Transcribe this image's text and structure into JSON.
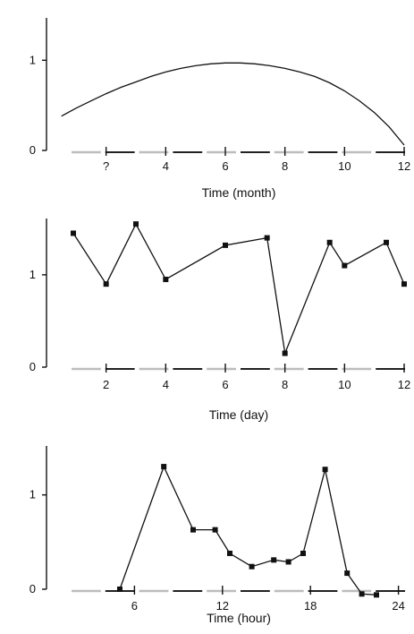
{
  "chart_data": [
    {
      "type": "line",
      "xlabel": "Time (month)",
      "xlim": [
        0,
        12.3
      ],
      "ylim": [
        0,
        1.45
      ],
      "xticks": [
        2,
        4,
        6,
        8,
        10,
        12
      ],
      "xtick_labels": [
        "?",
        "4",
        "6",
        "8",
        "10",
        "12"
      ],
      "yticks": [
        0,
        1
      ],
      "ytick_labels": [
        "0",
        "1"
      ],
      "markers": false,
      "series": [
        {
          "x": [
            0.5,
            1,
            1.5,
            2,
            2.5,
            3,
            3.5,
            4,
            4.5,
            5,
            5.5,
            6,
            6.5,
            7,
            7.5,
            8,
            8.5,
            9,
            9.5,
            10,
            10.5,
            11,
            11.5,
            12
          ],
          "y": [
            0.38,
            0.47,
            0.55,
            0.63,
            0.7,
            0.76,
            0.82,
            0.87,
            0.91,
            0.94,
            0.96,
            0.97,
            0.97,
            0.96,
            0.94,
            0.91,
            0.87,
            0.82,
            0.75,
            0.66,
            0.55,
            0.42,
            0.26,
            0.06
          ]
        }
      ]
    },
    {
      "type": "line",
      "xlabel": "Time (day)",
      "xlim": [
        0,
        12.3
      ],
      "ylim": [
        0,
        1.6
      ],
      "xticks": [
        2,
        4,
        6,
        8,
        10,
        12
      ],
      "xtick_labels": [
        "2",
        "4",
        "6",
        "8",
        "10",
        "12"
      ],
      "yticks": [
        0,
        1
      ],
      "ytick_labels": [
        "0",
        "1"
      ],
      "markers": true,
      "series": [
        {
          "x": [
            0.9,
            2.0,
            3.0,
            4.0,
            6.0,
            7.4,
            8.0,
            9.5,
            10.0,
            11.4,
            12.0
          ],
          "y": [
            1.45,
            0.9,
            1.55,
            0.95,
            1.32,
            1.4,
            0.15,
            1.35,
            1.1,
            1.35,
            0.9
          ]
        }
      ]
    },
    {
      "type": "line",
      "xlabel": "Time (hour)",
      "xlim": [
        0,
        25
      ],
      "ylim": [
        0,
        1.5
      ],
      "xticks": [
        6,
        12,
        18,
        24
      ],
      "xtick_labels": [
        "6",
        "12",
        "18",
        "24"
      ],
      "yticks": [
        0,
        1
      ],
      "ytick_labels": [
        "0",
        "1"
      ],
      "markers": true,
      "series": [
        {
          "x": [
            5,
            8,
            10,
            11.5,
            12.5,
            14,
            15.5,
            16.5,
            17.5,
            19,
            20.5,
            21.5,
            22.5
          ],
          "y": [
            0,
            1.3,
            0.63,
            0.63,
            0.38,
            0.24,
            0.31,
            0.29,
            0.38,
            1.27,
            0.17,
            -0.05,
            -0.06
          ]
        }
      ]
    }
  ]
}
